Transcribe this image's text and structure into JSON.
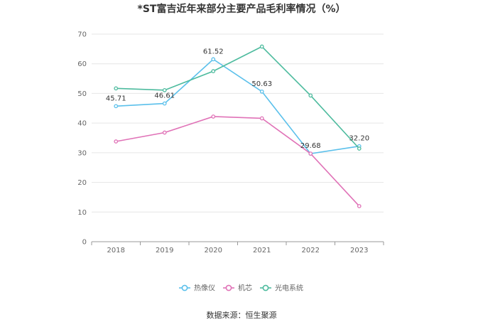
{
  "chart_data": {
    "type": "line",
    "title": "*ST富吉近年来部分主要产品毛利率情况（%）",
    "categories": [
      "2018",
      "2019",
      "2020",
      "2021",
      "2022",
      "2023"
    ],
    "ylim": [
      0,
      70
    ],
    "yticks": [
      0,
      10,
      20,
      30,
      40,
      50,
      60,
      70
    ],
    "grid": true,
    "legend_position": "bottom",
    "series": [
      {
        "name": "热像仪",
        "color": "#5bc0eb",
        "values": [
          45.71,
          46.61,
          61.52,
          50.63,
          29.68,
          32.2
        ],
        "labels": [
          "45.71",
          "46.61",
          "61.52",
          "50.63",
          "29.68",
          "32.20"
        ]
      },
      {
        "name": "机芯",
        "color": "#e072b7",
        "values": [
          33.8,
          36.8,
          42.2,
          41.6,
          29.7,
          12.0
        ],
        "labels": [
          "",
          "",
          "",
          "",
          "",
          ""
        ]
      },
      {
        "name": "光电系统",
        "color": "#4dbb9e",
        "values": [
          51.7,
          51.1,
          57.5,
          65.8,
          49.3,
          31.4
        ],
        "labels": [
          "",
          "",
          "",
          "",
          "",
          ""
        ]
      }
    ],
    "source": "数据来源：恒生聚源"
  }
}
